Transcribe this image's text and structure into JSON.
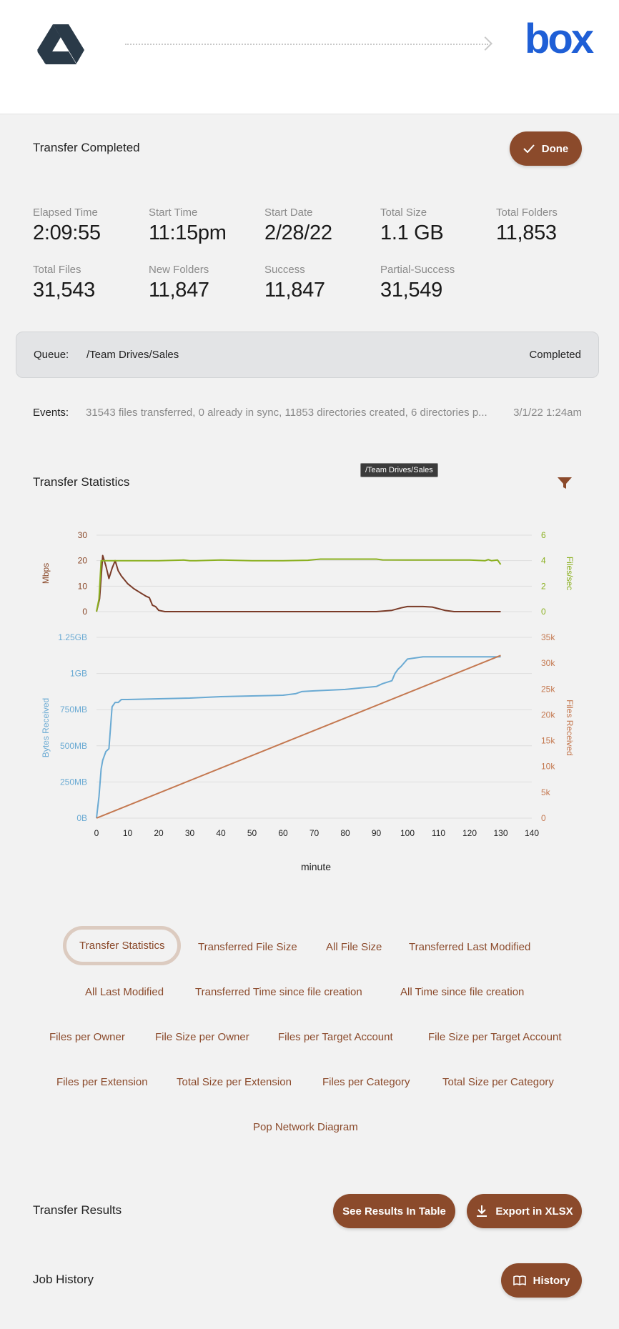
{
  "header": {
    "source_logo": "google-drive-logo",
    "target_logo_text": "box"
  },
  "transfer": {
    "title": "Transfer Completed",
    "done_label": "Done"
  },
  "stats": [
    {
      "label": "Elapsed Time",
      "value": "2:09:55"
    },
    {
      "label": "Start Time",
      "value": "11:15pm"
    },
    {
      "label": "Start Date",
      "value": "2/28/22"
    },
    {
      "label": "Total Size",
      "value": "1.1 GB"
    },
    {
      "label": "Total Folders",
      "value": "11,853"
    },
    {
      "label": "Total Files",
      "value": "31,543"
    },
    {
      "label": "New Folders",
      "value": "11,847"
    },
    {
      "label": "Success",
      "value": "11,847"
    },
    {
      "label": "Partial-Success",
      "value": "31,549"
    }
  ],
  "queue": {
    "label": "Queue:",
    "path": "/Team Drives/Sales",
    "status": "Completed"
  },
  "events": {
    "label": "Events:",
    "text": "31543 files transferred, 0 already in sync, 11853 directories created, 6 directories p...",
    "time": "3/1/22 1:24am"
  },
  "statistics": {
    "title": "Transfer Statistics",
    "tooltip": "/Team Drives/Sales"
  },
  "chart_data": {
    "type": "line",
    "xlabel": "minute",
    "x_ticks": [
      "0",
      "10",
      "20",
      "30",
      "40",
      "50",
      "60",
      "70",
      "80",
      "90",
      "100",
      "110",
      "120",
      "130",
      "140"
    ],
    "xlim": [
      0,
      140
    ],
    "panels": [
      {
        "left_axis": {
          "label": "Mbps",
          "ticks": [
            "0",
            "10",
            "20",
            "30"
          ],
          "ylim": [
            0,
            30
          ],
          "color": "#8b4a2b"
        },
        "right_axis": {
          "label": "Files/sec",
          "ticks": [
            "0",
            "2",
            "4",
            "6"
          ],
          "ylim": [
            0,
            6
          ],
          "color": "#8bb020"
        },
        "series": [
          {
            "axis": "left",
            "color": "#7a3b28",
            "x": [
              0,
              1,
              2,
              3,
              4,
              5,
              6,
              7,
              8,
              10,
              12,
              14,
              16,
              17,
              18,
              19,
              20,
              22,
              25,
              30,
              40,
              50,
              60,
              70,
              80,
              90,
              95,
              98,
              100,
              105,
              108,
              112,
              115,
              120,
              130
            ],
            "y": [
              0,
              5,
              22,
              18,
              13,
              17,
              20,
              16,
              14,
              11,
              9,
              7.5,
              6,
              5.5,
              2.5,
              2,
              0.5,
              0,
              0,
              0,
              0,
              0,
              0,
              0,
              0,
              0,
              0.5,
              1.5,
              2,
              2,
              1.8,
              0.5,
              0,
              0,
              0
            ]
          },
          {
            "axis": "right",
            "color": "#8bb020",
            "x": [
              0,
              0.8,
              1.5,
              3,
              20,
              28,
              30,
              32,
              40,
              50,
              60,
              68,
              70,
              72,
              80,
              90,
              92,
              100,
              110,
              120,
              125,
              126,
              127,
              129,
              130
            ],
            "y": [
              0,
              1,
              4,
              4,
              4,
              4.05,
              4,
              4,
              4.05,
              4,
              4,
              4.03,
              4.08,
              4.12,
              4.12,
              4.12,
              4.06,
              4.05,
              4.05,
              4.05,
              4,
              4.08,
              4,
              4.05,
              3.7
            ]
          }
        ]
      },
      {
        "left_axis": {
          "label": "Bytes Received",
          "ticks": [
            "0B",
            "250MB",
            "500MB",
            "750MB",
            "1GB",
            "1.25GB"
          ],
          "ylim": [
            0,
            1.25
          ],
          "color": "#6aaad3"
        },
        "right_axis": {
          "label": "Files Received",
          "ticks": [
            "0",
            "5k",
            "10k",
            "15k",
            "20k",
            "25k",
            "30k",
            "35k"
          ],
          "ylim": [
            0,
            35000
          ],
          "color": "#c47850"
        },
        "series": [
          {
            "axis": "left",
            "color": "#6aaad3",
            "x": [
              0,
              0.8,
              1.5,
              2,
              3,
              4,
              5,
              6,
              7,
              8,
              10,
              20,
              30,
              40,
              50,
              60,
              64,
              66,
              70,
              80,
              85,
              90,
              92,
              95,
              96,
              97,
              98,
              100,
              105,
              110,
              120,
              130
            ],
            "y": [
              0,
              0.15,
              0.34,
              0.4,
              0.46,
              0.48,
              0.77,
              0.8,
              0.8,
              0.82,
              0.82,
              0.825,
              0.83,
              0.84,
              0.845,
              0.85,
              0.86,
              0.875,
              0.88,
              0.89,
              0.9,
              0.91,
              0.93,
              0.95,
              1.0,
              1.03,
              1.05,
              1.1,
              1.115,
              1.115,
              1.115,
              1.115
            ]
          },
          {
            "axis": "right",
            "color": "#c47850",
            "x": [
              0,
              130
            ],
            "y": [
              0,
              31500
            ]
          }
        ]
      }
    ]
  },
  "tabs": {
    "rows": [
      [
        "Transfer Statistics",
        "Transferred File Size",
        "All File Size",
        "Transferred Last Modified"
      ],
      [
        "All Last Modified",
        "Transferred Time since file creation",
        "All Time since file creation"
      ],
      [
        "Files per Owner",
        "File Size per Owner",
        "Files per Target Account",
        "File Size per Target Account"
      ],
      [
        "Files per Extension",
        "Total Size per Extension",
        "Files per Category",
        "Total Size per Category"
      ],
      [
        "Pop Network Diagram"
      ]
    ],
    "active": "Transfer Statistics"
  },
  "results": {
    "title": "Transfer Results",
    "see_table_label": "See Results In Table",
    "export_label": "Export in XLSX"
  },
  "history": {
    "title": "Job History",
    "button_label": "History"
  }
}
